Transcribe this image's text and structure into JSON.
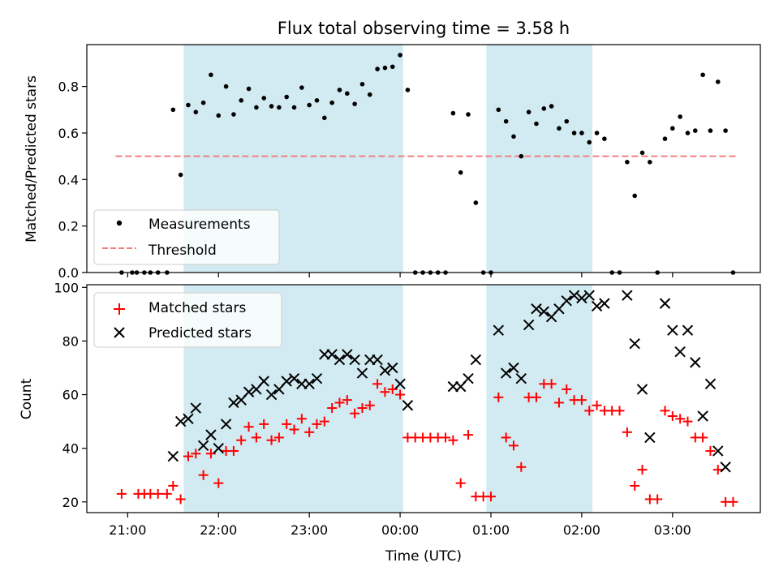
{
  "chart_data": [
    {
      "type": "scatter",
      "title": "Flux total observing time = 3.58 h",
      "xlabel": "",
      "ylabel": "Matched/Predicted stars",
      "xlim": [
        "20:33",
        "03:58"
      ],
      "ylim": [
        0,
        0.98
      ],
      "yticks": [
        0.0,
        0.2,
        0.4,
        0.6,
        0.8
      ],
      "ytick_labels": [
        "0.0",
        "0.2",
        "0.4",
        "0.6",
        "0.8"
      ],
      "shaded_intervals": [
        [
          "21:37",
          "00:02"
        ],
        [
          "00:57",
          "02:07"
        ]
      ],
      "shade_color": "#add8e6",
      "legend_position": "lower-left",
      "series": [
        {
          "name": "Measurements",
          "kind": "scatter",
          "marker": "dot",
          "color": "#000000",
          "points": [
            [
              "20:56",
              0.0
            ],
            [
              "21:03",
              0.0
            ],
            [
              "21:06",
              0.0
            ],
            [
              "21:11",
              0.0
            ],
            [
              "21:15",
              0.0
            ],
            [
              "21:20",
              0.0
            ],
            [
              "21:26",
              0.0
            ],
            [
              "21:30",
              0.7
            ],
            [
              "21:35",
              0.42
            ],
            [
              "21:40",
              0.72
            ],
            [
              "21:45",
              0.69
            ],
            [
              "21:50",
              0.73
            ],
            [
              "21:55",
              0.85
            ],
            [
              "22:00",
              0.675
            ],
            [
              "22:05",
              0.8
            ],
            [
              "22:10",
              0.68
            ],
            [
              "22:15",
              0.74
            ],
            [
              "22:20",
              0.79
            ],
            [
              "22:25",
              0.71
            ],
            [
              "22:30",
              0.75
            ],
            [
              "22:35",
              0.715
            ],
            [
              "22:40",
              0.71
            ],
            [
              "22:45",
              0.755
            ],
            [
              "22:50",
              0.71
            ],
            [
              "22:55",
              0.795
            ],
            [
              "23:00",
              0.72
            ],
            [
              "23:05",
              0.74
            ],
            [
              "23:10",
              0.665
            ],
            [
              "23:15",
              0.73
            ],
            [
              "23:20",
              0.785
            ],
            [
              "23:25",
              0.77
            ],
            [
              "23:30",
              0.725
            ],
            [
              "23:35",
              0.81
            ],
            [
              "23:40",
              0.765
            ],
            [
              "23:45",
              0.875
            ],
            [
              "23:50",
              0.88
            ],
            [
              "23:55",
              0.885
            ],
            [
              "00:00",
              0.935
            ],
            [
              "00:05",
              0.785
            ],
            [
              "00:10",
              0.0
            ],
            [
              "00:15",
              0.0
            ],
            [
              "00:20",
              0.0
            ],
            [
              "00:25",
              0.0
            ],
            [
              "00:30",
              0.0
            ],
            [
              "00:35",
              0.685
            ],
            [
              "00:40",
              0.43
            ],
            [
              "00:45",
              0.68
            ],
            [
              "00:50",
              0.3
            ],
            [
              "00:55",
              0.0
            ],
            [
              "01:00",
              0.0
            ],
            [
              "01:05",
              0.7
            ],
            [
              "01:10",
              0.65
            ],
            [
              "01:15",
              0.585
            ],
            [
              "01:20",
              0.5
            ],
            [
              "01:25",
              0.69
            ],
            [
              "01:30",
              0.64
            ],
            [
              "01:35",
              0.705
            ],
            [
              "01:40",
              0.715
            ],
            [
              "01:45",
              0.62
            ],
            [
              "01:50",
              0.65
            ],
            [
              "01:55",
              0.6
            ],
            [
              "02:00",
              0.6
            ],
            [
              "02:05",
              0.56
            ],
            [
              "02:10",
              0.6
            ],
            [
              "02:15",
              0.575
            ],
            [
              "02:20",
              0.0
            ],
            [
              "02:25",
              0.0
            ],
            [
              "02:30",
              0.475
            ],
            [
              "02:35",
              0.33
            ],
            [
              "02:40",
              0.515
            ],
            [
              "02:45",
              0.475
            ],
            [
              "02:50",
              0.0
            ],
            [
              "02:55",
              0.575
            ],
            [
              "03:00",
              0.62
            ],
            [
              "03:05",
              0.67
            ],
            [
              "03:10",
              0.6
            ],
            [
              "03:15",
              0.61
            ],
            [
              "03:20",
              0.85
            ],
            [
              "03:25",
              0.61
            ],
            [
              "03:30",
              0.82
            ],
            [
              "03:35",
              0.61
            ],
            [
              "03:40",
              0.0
            ]
          ]
        },
        {
          "name": "Threshold",
          "kind": "line",
          "style": "dashed",
          "color": "#f08080",
          "points": [
            [
              "20:52",
              0.5
            ],
            [
              "03:42",
              0.5
            ]
          ]
        }
      ]
    },
    {
      "type": "scatter",
      "title": "",
      "xlabel": "Time (UTC)",
      "ylabel": "Count",
      "xlim": [
        "20:33",
        "03:58"
      ],
      "ylim": [
        16,
        101
      ],
      "yticks": [
        20,
        40,
        60,
        80,
        100
      ],
      "ytick_labels": [
        "20",
        "40",
        "60",
        "80",
        "100"
      ],
      "xticks": [
        "21:00",
        "22:00",
        "23:00",
        "00:00",
        "01:00",
        "02:00",
        "03:00"
      ],
      "xtick_labels": [
        "21:00",
        "22:00",
        "23:00",
        "00:00",
        "01:00",
        "02:00",
        "03:00"
      ],
      "shaded_intervals": [
        [
          "21:37",
          "00:02"
        ],
        [
          "00:57",
          "02:07"
        ]
      ],
      "shade_color": "#add8e6",
      "legend_position": "upper-left",
      "series": [
        {
          "name": "Matched stars",
          "kind": "scatter",
          "marker": "plus",
          "color": "#ff0000",
          "points": [
            [
              "20:56",
              23
            ],
            [
              "21:07",
              23
            ],
            [
              "21:11",
              23
            ],
            [
              "21:15",
              23
            ],
            [
              "21:20",
              23
            ],
            [
              "21:26",
              23
            ],
            [
              "21:30",
              26
            ],
            [
              "21:35",
              21
            ],
            [
              "21:40",
              37
            ],
            [
              "21:45",
              38
            ],
            [
              "21:50",
              30
            ],
            [
              "21:55",
              38
            ],
            [
              "22:00",
              27
            ],
            [
              "22:05",
              39
            ],
            [
              "22:10",
              39
            ],
            [
              "22:15",
              43
            ],
            [
              "22:20",
              48
            ],
            [
              "22:25",
              44
            ],
            [
              "22:30",
              49
            ],
            [
              "22:35",
              43
            ],
            [
              "22:40",
              44
            ],
            [
              "22:45",
              49
            ],
            [
              "22:50",
              47
            ],
            [
              "22:55",
              51
            ],
            [
              "23:00",
              46
            ],
            [
              "23:05",
              49
            ],
            [
              "23:10",
              50
            ],
            [
              "23:15",
              55
            ],
            [
              "23:20",
              57
            ],
            [
              "23:25",
              58
            ],
            [
              "23:30",
              53
            ],
            [
              "23:35",
              55
            ],
            [
              "23:40",
              56
            ],
            [
              "23:45",
              64
            ],
            [
              "23:50",
              61
            ],
            [
              "23:55",
              62
            ],
            [
              "00:00",
              60
            ],
            [
              "00:05",
              44
            ],
            [
              "00:10",
              44
            ],
            [
              "00:15",
              44
            ],
            [
              "00:20",
              44
            ],
            [
              "00:25",
              44
            ],
            [
              "00:30",
              44
            ],
            [
              "00:35",
              43
            ],
            [
              "00:40",
              27
            ],
            [
              "00:45",
              45
            ],
            [
              "00:50",
              22
            ],
            [
              "00:55",
              22
            ],
            [
              "01:00",
              22
            ],
            [
              "01:05",
              59
            ],
            [
              "01:10",
              44
            ],
            [
              "01:15",
              41
            ],
            [
              "01:20",
              33
            ],
            [
              "01:25",
              59
            ],
            [
              "01:30",
              59
            ],
            [
              "01:35",
              64
            ],
            [
              "01:40",
              64
            ],
            [
              "01:45",
              57
            ],
            [
              "01:50",
              62
            ],
            [
              "01:55",
              58
            ],
            [
              "02:00",
              58
            ],
            [
              "02:05",
              54
            ],
            [
              "02:10",
              56
            ],
            [
              "02:15",
              54
            ],
            [
              "02:20",
              54
            ],
            [
              "02:25",
              54
            ],
            [
              "02:30",
              46
            ],
            [
              "02:35",
              26
            ],
            [
              "02:40",
              32
            ],
            [
              "02:45",
              21
            ],
            [
              "02:50",
              21
            ],
            [
              "02:55",
              54
            ],
            [
              "03:00",
              52
            ],
            [
              "03:05",
              51
            ],
            [
              "03:10",
              50
            ],
            [
              "03:15",
              44
            ],
            [
              "03:20",
              44
            ],
            [
              "03:25",
              39
            ],
            [
              "03:30",
              32
            ],
            [
              "03:35",
              20
            ],
            [
              "03:40",
              20
            ]
          ]
        },
        {
          "name": "Predicted stars",
          "kind": "scatter",
          "marker": "x",
          "color": "#000000",
          "points": [
            [
              "21:30",
              37
            ],
            [
              "21:35",
              50
            ],
            [
              "21:40",
              51
            ],
            [
              "21:45",
              55
            ],
            [
              "21:50",
              41
            ],
            [
              "21:55",
              45
            ],
            [
              "22:00",
              40
            ],
            [
              "22:05",
              49
            ],
            [
              "22:10",
              57
            ],
            [
              "22:15",
              58
            ],
            [
              "22:20",
              61
            ],
            [
              "22:25",
              62
            ],
            [
              "22:30",
              65
            ],
            [
              "22:35",
              60
            ],
            [
              "22:40",
              62
            ],
            [
              "22:45",
              65
            ],
            [
              "22:50",
              66
            ],
            [
              "22:55",
              64
            ],
            [
              "23:00",
              64
            ],
            [
              "23:05",
              66
            ],
            [
              "23:10",
              75
            ],
            [
              "23:15",
              75
            ],
            [
              "23:20",
              73
            ],
            [
              "23:25",
              75
            ],
            [
              "23:30",
              73
            ],
            [
              "23:35",
              68
            ],
            [
              "23:40",
              73
            ],
            [
              "23:45",
              73
            ],
            [
              "23:50",
              69
            ],
            [
              "23:55",
              70
            ],
            [
              "00:00",
              64
            ],
            [
              "00:05",
              56
            ],
            [
              "00:35",
              63
            ],
            [
              "00:40",
              63
            ],
            [
              "00:45",
              66
            ],
            [
              "00:50",
              73
            ],
            [
              "01:05",
              84
            ],
            [
              "01:10",
              68
            ],
            [
              "01:15",
              70
            ],
            [
              "01:20",
              66
            ],
            [
              "01:25",
              86
            ],
            [
              "01:30",
              92
            ],
            [
              "01:35",
              91
            ],
            [
              "01:40",
              89
            ],
            [
              "01:45",
              92
            ],
            [
              "01:50",
              95
            ],
            [
              "01:55",
              97
            ],
            [
              "02:00",
              96
            ],
            [
              "02:05",
              97
            ],
            [
              "02:10",
              93
            ],
            [
              "02:15",
              94
            ],
            [
              "02:30",
              97
            ],
            [
              "02:35",
              79
            ],
            [
              "02:40",
              62
            ],
            [
              "02:45",
              44
            ],
            [
              "02:55",
              94
            ],
            [
              "03:00",
              84
            ],
            [
              "03:05",
              76
            ],
            [
              "03:10",
              84
            ],
            [
              "03:15",
              72
            ],
            [
              "03:20",
              52
            ],
            [
              "03:25",
              64
            ],
            [
              "03:30",
              39
            ],
            [
              "03:35",
              33
            ]
          ]
        }
      ]
    }
  ]
}
